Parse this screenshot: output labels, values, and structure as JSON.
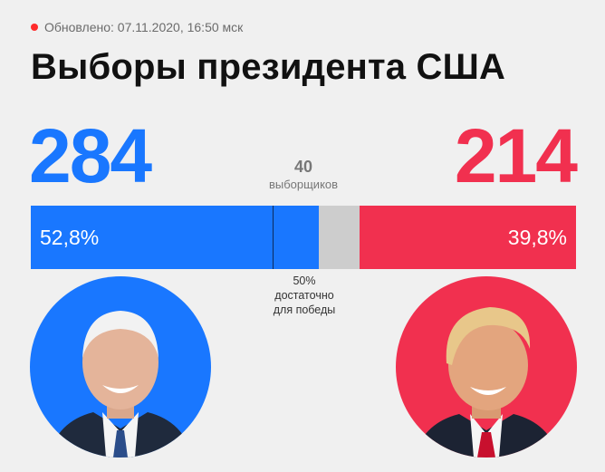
{
  "update": {
    "text": "Обновлено: 07.11.2020, 16:50 мск",
    "dot_color": "#ff2b2b"
  },
  "title": "Выборы президента США",
  "candidates": [
    {
      "votes": "284",
      "percent": "52,8%",
      "color": "#1977ff",
      "icon": "candidate-portrait-blue"
    },
    {
      "votes": "214",
      "percent": "39,8%",
      "color": "#f1304f",
      "icon": "candidate-portrait-red"
    }
  ],
  "remaining": {
    "count": "40",
    "label": "выборщиков"
  },
  "threshold": {
    "percent": "50%",
    "line2": "достаточно",
    "line3": "для победы"
  }
}
